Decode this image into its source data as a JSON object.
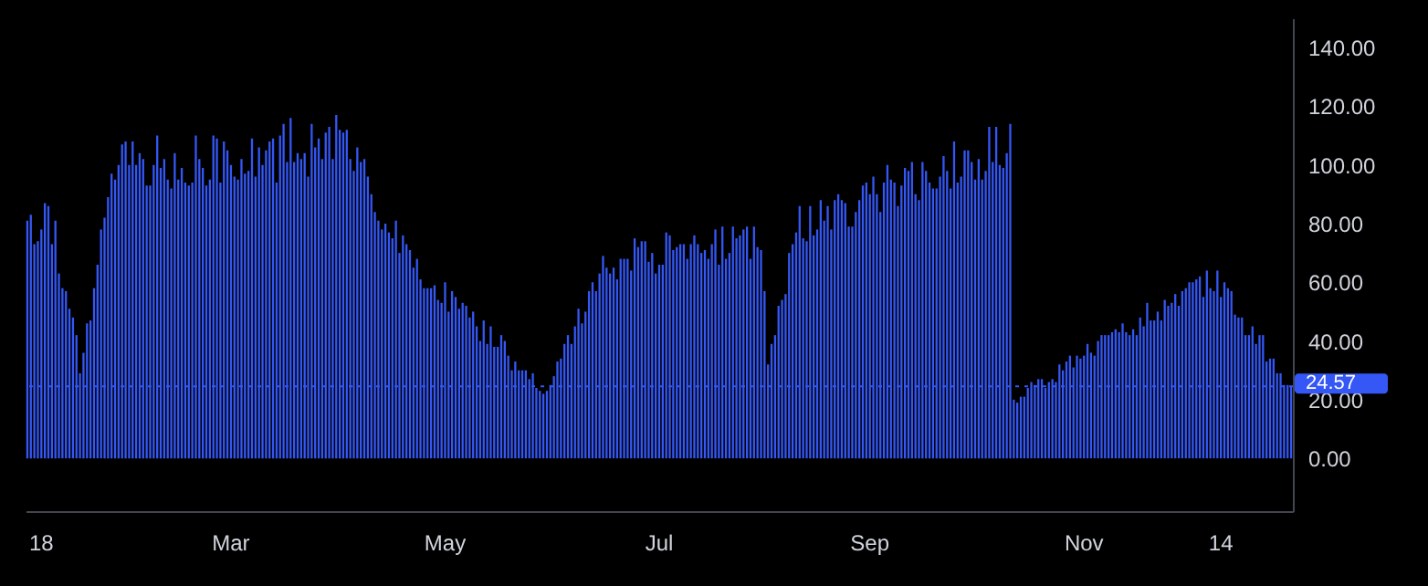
{
  "chart_data": {
    "type": "bar",
    "color": "#3457f5",
    "categories": [
      null,
      null,
      null,
      null,
      "18",
      null,
      null,
      null,
      null,
      null,
      null,
      null,
      null,
      null,
      null,
      null,
      null,
      null,
      null,
      null,
      null,
      null,
      null,
      null,
      null,
      null,
      null,
      null,
      null,
      null,
      null,
      null,
      null,
      null,
      null,
      null,
      null,
      null,
      null,
      null,
      null,
      null,
      null,
      null,
      null,
      null,
      null,
      null,
      null,
      null,
      null,
      null,
      null,
      null,
      null,
      null,
      null,
      null,
      "Mar",
      null,
      null,
      null,
      null,
      null,
      null,
      null,
      null,
      null,
      null,
      null,
      null,
      null,
      null,
      null,
      null,
      null,
      null,
      null,
      null,
      null,
      null,
      null,
      null,
      null,
      null,
      null,
      null,
      null,
      null,
      null,
      null,
      null,
      null,
      null,
      null,
      null,
      null,
      null,
      null,
      null,
      null,
      null,
      null,
      null,
      null,
      null,
      null,
      null,
      null,
      null,
      null,
      null,
      null,
      null,
      null,
      null,
      null,
      null,
      null,
      "May",
      null,
      null,
      null,
      null,
      null,
      null,
      null,
      null,
      null,
      null,
      null,
      null,
      null,
      null,
      null,
      null,
      null,
      null,
      null,
      null,
      null,
      null,
      null,
      null,
      null,
      null,
      null,
      null,
      null,
      null,
      null,
      null,
      null,
      null,
      null,
      null,
      null,
      null,
      null,
      null,
      null,
      null,
      null,
      null,
      null,
      null,
      null,
      null,
      null,
      null,
      null,
      null,
      null,
      null,
      null,
      null,
      null,
      null,
      null,
      null,
      "Jul",
      null,
      null,
      null,
      null,
      null,
      null,
      null,
      null,
      null,
      null,
      null,
      null,
      null,
      null,
      null,
      null,
      null,
      null,
      null,
      null,
      null,
      null,
      null,
      null,
      null,
      null,
      null,
      null,
      null,
      null,
      null,
      null,
      null,
      null,
      null,
      null,
      null,
      null,
      null,
      null,
      null,
      null,
      null,
      null,
      null,
      null,
      null,
      null,
      null,
      null,
      null,
      null,
      null,
      null,
      null,
      null,
      null,
      null,
      null,
      "Sep",
      null,
      null,
      null,
      null,
      null,
      null,
      null,
      null,
      null,
      null,
      null,
      null,
      null,
      null,
      null,
      null,
      null,
      null,
      null,
      null,
      null,
      null,
      null,
      null,
      null,
      null,
      null,
      null,
      null,
      null,
      null,
      null,
      null,
      null,
      null,
      null,
      null,
      null,
      null,
      null,
      null,
      null,
      null,
      null,
      null,
      null,
      null,
      null,
      null,
      null,
      null,
      null,
      null,
      null,
      null,
      null,
      null,
      null,
      null,
      null,
      "Nov",
      null,
      null,
      null,
      null,
      null,
      null,
      null,
      null,
      null,
      null,
      null,
      null,
      null,
      null,
      null,
      null,
      null,
      null,
      null,
      null,
      null,
      null,
      null,
      null,
      null,
      null,
      null,
      null,
      null,
      null,
      null,
      null,
      null,
      null,
      null,
      null,
      null,
      null,
      "14",
      null,
      null,
      null,
      null,
      null,
      null,
      null,
      null,
      null,
      null,
      null,
      null,
      null,
      null,
      null,
      null,
      null,
      null,
      null,
      null
    ],
    "values": [
      81,
      83,
      73,
      74,
      78,
      87,
      86,
      73,
      81,
      63,
      58,
      57,
      51,
      48,
      42,
      29,
      36,
      46,
      47,
      58,
      66,
      78,
      82,
      89,
      97,
      95,
      100,
      107,
      108,
      100,
      108,
      100,
      104,
      102,
      93,
      93,
      100,
      110,
      99,
      102,
      95,
      92,
      104,
      95,
      99,
      94,
      93,
      94,
      110,
      102,
      99,
      93,
      95,
      110,
      109,
      94,
      108,
      105,
      100,
      96,
      95,
      102,
      97,
      98,
      109,
      96,
      106,
      100,
      105,
      108,
      109,
      94,
      110,
      114,
      101,
      116,
      101,
      104,
      102,
      104,
      96,
      114,
      106,
      109,
      102,
      111,
      113,
      102,
      117,
      112,
      111,
      112,
      102,
      98,
      106,
      101,
      102,
      96,
      90,
      84,
      81,
      78,
      80,
      77,
      75,
      81,
      70,
      76,
      73,
      71,
      65,
      68,
      61,
      58,
      58,
      58,
      59,
      54,
      53,
      60,
      50,
      57,
      55,
      51,
      53,
      52,
      48,
      50,
      45,
      40,
      47,
      39,
      45,
      38,
      38,
      42,
      40,
      35,
      30,
      33,
      30,
      30,
      30,
      27,
      29,
      24,
      23,
      22,
      23,
      25,
      28,
      33,
      34,
      39,
      42,
      39,
      45,
      51,
      46,
      50,
      57,
      60,
      57,
      63,
      69,
      65,
      63,
      65,
      61,
      68,
      68,
      68,
      64,
      75,
      72,
      74,
      74,
      67,
      70,
      63,
      66,
      66,
      77,
      76,
      71,
      72,
      73,
      73,
      68,
      73,
      76,
      73,
      70,
      71,
      68,
      73,
      78,
      66,
      79,
      68,
      70,
      79,
      75,
      76,
      78,
      79,
      68,
      79,
      72,
      71,
      57,
      32,
      39,
      42,
      52,
      54,
      56,
      70,
      73,
      77,
      86,
      75,
      74,
      86,
      76,
      78,
      88,
      81,
      86,
      78,
      88,
      90,
      88,
      87,
      79,
      79,
      84,
      88,
      93,
      94,
      90,
      96,
      90,
      84,
      94,
      100,
      95,
      94,
      86,
      93,
      99,
      98,
      101,
      90,
      88,
      101,
      98,
      94,
      92,
      92,
      96,
      103,
      98,
      92,
      108,
      94,
      96,
      105,
      105,
      101,
      95,
      102,
      95,
      98,
      113,
      101,
      113,
      100,
      99,
      104,
      114,
      20,
      19,
      21,
      21,
      24,
      26,
      25,
      27,
      27,
      24,
      26,
      27,
      26,
      32,
      30,
      33,
      35,
      31,
      35,
      34,
      35,
      39,
      36,
      35,
      40,
      42,
      42,
      42,
      43,
      44,
      43,
      46,
      43,
      42,
      44,
      42,
      48,
      45,
      53,
      47,
      47,
      50,
      47,
      54,
      52,
      53,
      56,
      52,
      57,
      58,
      60,
      60,
      61,
      62,
      55,
      64,
      58,
      57,
      64,
      55,
      60,
      58,
      57,
      49,
      48,
      48,
      42,
      42,
      45,
      39,
      42,
      42,
      33,
      34,
      34,
      29,
      29,
      25,
      25,
      24.57
    ],
    "ylim": [
      -18,
      150
    ],
    "yticks": [
      {
        "value": 0,
        "label": "0.00"
      },
      {
        "value": 20,
        "label": "20.00"
      },
      {
        "value": 40,
        "label": "40.00"
      },
      {
        "value": 60,
        "label": "60.00"
      },
      {
        "value": 80,
        "label": "80.00"
      },
      {
        "value": 100,
        "label": "100.00"
      },
      {
        "value": 120,
        "label": "120.00"
      },
      {
        "value": 140,
        "label": "140.00"
      }
    ],
    "ref_lines": [
      {
        "axis": "y",
        "value": 24.57,
        "label": "24.57",
        "color": "#3457f5",
        "line_style": "dotted"
      }
    ]
  }
}
